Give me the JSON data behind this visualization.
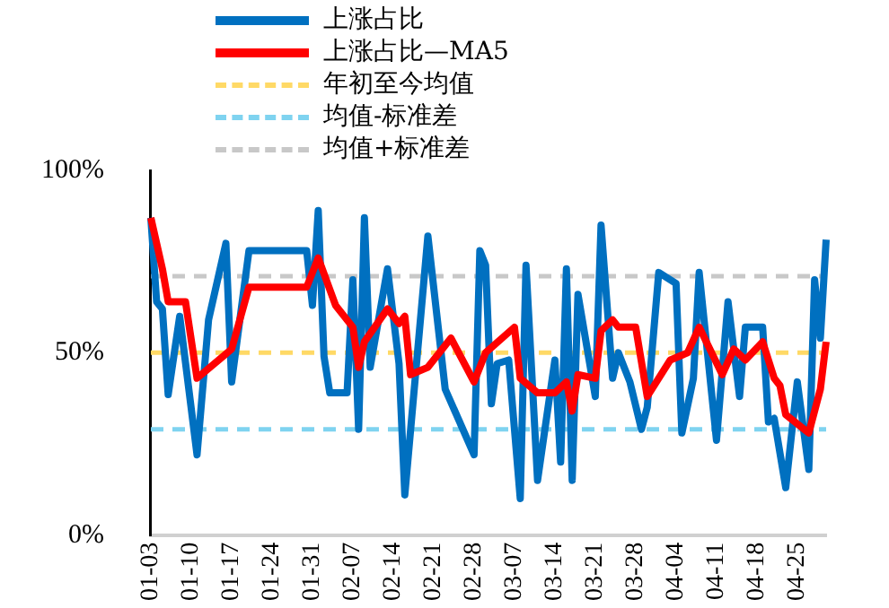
{
  "chart_data": {
    "type": "line",
    "categories": [
      "01-03",
      null,
      null,
      null,
      null,
      null,
      null,
      "01-10",
      null,
      null,
      null,
      null,
      null,
      null,
      "01-17",
      null,
      null,
      null,
      null,
      null,
      null,
      "01-24",
      null,
      null,
      null,
      null,
      null,
      null,
      "01-31",
      null,
      null,
      null,
      null,
      null,
      null,
      "02-07",
      null,
      null,
      null,
      null,
      null,
      null,
      "02-14",
      null,
      null,
      null,
      null,
      null,
      null,
      "02-21",
      null,
      null,
      null,
      null,
      null,
      null,
      "02-28",
      null,
      null,
      null,
      null,
      null,
      null,
      "03-07",
      null,
      null,
      null,
      null,
      null,
      null,
      "03-14",
      null,
      null,
      null,
      null,
      null,
      null,
      "03-21",
      null,
      null,
      null,
      null,
      null,
      null,
      "03-28",
      null,
      null,
      null,
      null,
      null,
      null,
      "04-04",
      null,
      null,
      null,
      null,
      null,
      null,
      "04-11",
      null,
      null,
      null,
      null,
      null,
      null,
      "04-18",
      null,
      null,
      null,
      null,
      null,
      null,
      "04-25",
      null,
      null,
      null,
      null,
      null
    ],
    "series": [
      {
        "name": "上涨占比",
        "color": "#0070c0",
        "values": [
          87,
          64,
          62,
          38.5,
          null,
          60,
          null,
          null,
          22,
          null,
          59,
          null,
          null,
          80,
          42,
          null,
          null,
          78,
          null,
          null,
          null,
          null,
          null,
          null,
          null,
          null,
          null,
          78,
          63,
          89,
          49,
          39,
          null,
          null,
          39,
          70,
          29,
          87,
          46,
          null,
          null,
          73,
          null,
          47,
          11,
          null,
          null,
          null,
          82,
          null,
          null,
          40,
          null,
          null,
          null,
          null,
          22,
          78,
          74,
          36,
          47,
          null,
          48,
          null,
          10,
          74,
          null,
          15,
          null,
          null,
          48,
          20,
          73,
          15,
          66,
          null,
          null,
          38,
          85,
          null,
          43,
          50,
          null,
          42,
          null,
          29,
          35,
          null,
          72,
          null,
          null,
          69,
          28,
          null,
          43,
          72,
          null,
          null,
          26,
          null,
          64,
          null,
          38,
          57,
          null,
          null,
          57,
          31,
          32,
          null,
          13,
          null,
          42,
          null,
          18,
          70,
          54,
          81
        ]
      },
      {
        "name": "上涨占比—MA5",
        "color": "#ff0000",
        "values": [
          87,
          null,
          73,
          64,
          null,
          null,
          64,
          null,
          43,
          null,
          null,
          null,
          null,
          null,
          51,
          null,
          null,
          68,
          null,
          null,
          null,
          null,
          null,
          null,
          null,
          null,
          null,
          68,
          null,
          76,
          null,
          null,
          63,
          null,
          null,
          57,
          46,
          53,
          null,
          null,
          null,
          62,
          null,
          58,
          60,
          44,
          null,
          null,
          46,
          null,
          null,
          null,
          54,
          null,
          null,
          null,
          42,
          null,
          50,
          null,
          null,
          null,
          null,
          57,
          43,
          null,
          null,
          39,
          null,
          null,
          39,
          null,
          42,
          34,
          44,
          null,
          null,
          43,
          56,
          null,
          59,
          57,
          null,
          null,
          57,
          null,
          38,
          null,
          null,
          null,
          48,
          null,
          null,
          50,
          null,
          57,
          null,
          null,
          null,
          44,
          null,
          51,
          null,
          48,
          null,
          null,
          53,
          null,
          43,
          41,
          33,
          null,
          null,
          null,
          28,
          null,
          40,
          53
        ]
      }
    ],
    "ref_lines": [
      {
        "axis": "y",
        "value": 50,
        "label": "年初至今均值",
        "color": "#ffd966",
        "line_style": "dashed"
      },
      {
        "axis": "y",
        "value": 29,
        "label": "均值-标准差",
        "color": "#7fd3f0",
        "line_style": "dashed"
      },
      {
        "axis": "y",
        "value": 71,
        "label": "均值+标准差",
        "color": "#c8c8c8",
        "line_style": "dashed"
      }
    ],
    "ylim": [
      0,
      100
    ],
    "yticks": [
      {
        "value": 0,
        "label": "0%"
      },
      {
        "value": 50,
        "label": "50%"
      },
      {
        "value": 100,
        "label": "100%"
      }
    ],
    "grid": false,
    "legend": "top",
    "marker": "none",
    "line_style": "solid"
  }
}
